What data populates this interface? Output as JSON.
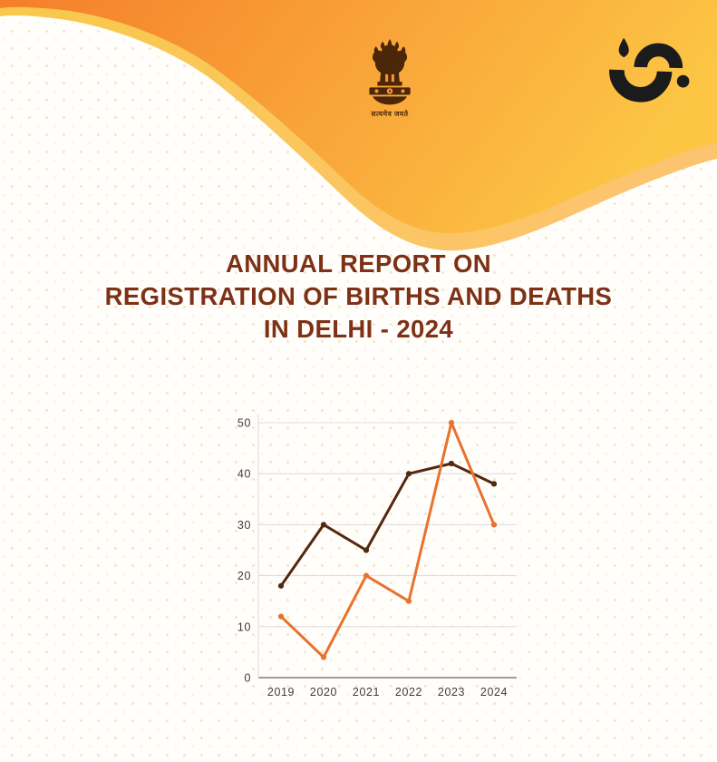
{
  "header": {
    "wave_colors": {
      "orange_start": "#F57E2B",
      "orange_end": "#FCC544",
      "edge_start": "#F8C94B",
      "edge_end": "#FCC46E"
    },
    "emblem": {
      "motto": "सत्यमेव जयते",
      "color": "#4B2609"
    },
    "logo": {
      "color": "#1B1B1B"
    }
  },
  "title": {
    "line1": "ANNUAL REPORT ON",
    "line2": "REGISTRATION OF BIRTHS AND DEATHS",
    "line3": "IN DELHI - 2024",
    "color": "#7D3116"
  },
  "chart_data": {
    "type": "line",
    "title": "",
    "xlabel": "",
    "ylabel": "",
    "categories": [
      "2019",
      "2020",
      "2021",
      "2022",
      "2023",
      "2024"
    ],
    "series": [
      {
        "name": "dark-brown-line",
        "color": "#54270F",
        "values": [
          18,
          30,
          25,
          40,
          42,
          38
        ]
      },
      {
        "name": "orange-line",
        "color": "#E8722E",
        "values": [
          12,
          4,
          20,
          15,
          50,
          30
        ]
      }
    ],
    "ylim": [
      0,
      50
    ],
    "yticks": [
      0,
      10,
      20,
      30,
      40,
      50
    ],
    "grid": true,
    "legend_position": "none",
    "gridline_color": "#dddddd",
    "axis_color": "#8f8f8f"
  }
}
